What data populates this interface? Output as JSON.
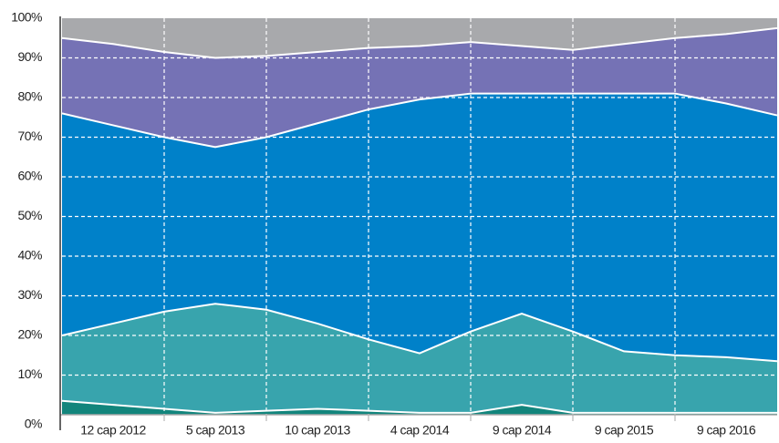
{
  "chart_data": {
    "type": "stacked_area",
    "categories": [
      null,
      "12 cap 2012",
      null,
      "5 cap 2013",
      null,
      "10 cap 2013",
      null,
      "4 cap 2014",
      null,
      "9 cap 2014",
      null,
      "9 cap 2015",
      null,
      "9 cap 2016",
      null
    ],
    "series": [
      {
        "color": "#12857c",
        "values": [
          3.5,
          2.5,
          1.5,
          0.5,
          1,
          1.5,
          1,
          0.5,
          0.5,
          2.5,
          0.5,
          0.5,
          0.5,
          0.5,
          0.5
        ]
      },
      {
        "color": "#38a4ad",
        "values": [
          16.5,
          20.5,
          24.5,
          27.5,
          25.5,
          21.5,
          18,
          15,
          20.5,
          23,
          20.5,
          15.5,
          14.5,
          14,
          13
        ]
      },
      {
        "color": "#0081c9",
        "values": [
          56,
          50,
          44,
          39.5,
          43.5,
          50.5,
          58,
          64,
          60,
          55.5,
          60,
          65,
          66,
          64,
          62
        ]
      },
      {
        "color": "#7572b5",
        "values": [
          19,
          20.5,
          21.5,
          22.5,
          20.5,
          18,
          15.5,
          13.5,
          13,
          12,
          11,
          12.5,
          14,
          17.5,
          22
        ]
      },
      {
        "color": "#a8a9ac",
        "values": [
          5,
          6.5,
          8.5,
          10,
          9.5,
          8.5,
          7.5,
          7,
          6,
          7,
          8,
          6.5,
          5,
          4,
          2.5
        ]
      }
    ],
    "ylim": [
      0,
      100
    ],
    "yticks": [
      {
        "value": 0,
        "label": "0%"
      },
      {
        "value": 10,
        "label": "10%"
      },
      {
        "value": 20,
        "label": "20%"
      },
      {
        "value": 30,
        "label": "30%"
      },
      {
        "value": 40,
        "label": "40%"
      },
      {
        "value": 50,
        "label": "50%"
      },
      {
        "value": 60,
        "label": "60%"
      },
      {
        "value": 70,
        "label": "70%"
      },
      {
        "value": 80,
        "label": "80%"
      },
      {
        "value": 90,
        "label": "90%"
      },
      {
        "value": 100,
        "label": "100%"
      }
    ],
    "grid": true
  }
}
